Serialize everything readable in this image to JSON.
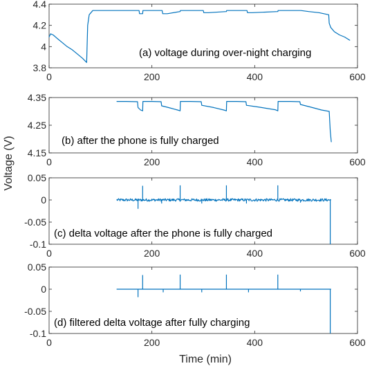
{
  "line_color": "#0072BD",
  "chart_data": [
    {
      "type": "line",
      "annotation": "(a) voltage during over-night charging",
      "xlim": [
        0,
        600
      ],
      "ylim": [
        3.8,
        4.4
      ],
      "xticks": [
        0,
        200,
        400,
        600
      ],
      "yticks": [
        3.8,
        4,
        4.2,
        4.4
      ],
      "xtick_labels": [
        "0",
        "200",
        "400",
        "600"
      ],
      "ytick_labels": [
        "3.8",
        "4",
        "4.2",
        "4.4"
      ],
      "series": [
        {
          "x": [
            0,
            3,
            8,
            15,
            25,
            35,
            45,
            55,
            65,
            73,
            75,
            78,
            85,
            100,
            120,
            150,
            175,
            176,
            182,
            182.5,
            200,
            220,
            221,
            230,
            255,
            255.5,
            280,
            300,
            301,
            310,
            345,
            345.5,
            370,
            385,
            386,
            395,
            445,
            445.5,
            470,
            490,
            505,
            525,
            544,
            545,
            548,
            555,
            565,
            575,
            585
          ],
          "y": [
            4.09,
            4.12,
            4.11,
            4.08,
            4.04,
            4.0,
            3.97,
            3.93,
            3.89,
            3.85,
            4.2,
            4.3,
            4.34,
            4.34,
            4.34,
            4.34,
            4.34,
            4.31,
            4.31,
            4.34,
            4.34,
            4.34,
            4.31,
            4.31,
            4.33,
            4.34,
            4.34,
            4.34,
            4.32,
            4.32,
            4.33,
            4.34,
            4.34,
            4.34,
            4.32,
            4.32,
            4.33,
            4.34,
            4.34,
            4.34,
            4.33,
            4.32,
            4.3,
            4.22,
            4.18,
            4.14,
            4.11,
            4.09,
            4.06
          ]
        }
      ]
    },
    {
      "type": "line",
      "annotation": "(b) after the phone is fully charged",
      "xlim": [
        0,
        600
      ],
      "ylim": [
        4.15,
        4.35
      ],
      "xticks": [
        0,
        200,
        400,
        600
      ],
      "yticks": [
        4.15,
        4.25,
        4.35
      ],
      "xtick_labels": [
        "0",
        "200",
        "400",
        "600"
      ],
      "ytick_labels": [
        "4.15",
        "4.25",
        "4.35"
      ],
      "series": [
        {
          "x": [
            132,
            150,
            172,
            173,
            178,
            182,
            182.5,
            200,
            218,
            219,
            230,
            250,
            255,
            255.5,
            275,
            296,
            297,
            320,
            340,
            345,
            345.5,
            365,
            383,
            384,
            410,
            440,
            445,
            445.5,
            470,
            488,
            489,
            510,
            530,
            545,
            547,
            549
          ],
          "y": [
            4.336,
            4.336,
            4.335,
            4.314,
            4.305,
            4.302,
            4.336,
            4.336,
            4.335,
            4.32,
            4.315,
            4.305,
            4.302,
            4.336,
            4.336,
            4.335,
            4.322,
            4.314,
            4.305,
            4.302,
            4.336,
            4.336,
            4.335,
            4.322,
            4.315,
            4.306,
            4.302,
            4.336,
            4.336,
            4.335,
            4.325,
            4.315,
            4.305,
            4.3,
            4.23,
            4.19
          ]
        }
      ]
    },
    {
      "type": "line",
      "annotation": "(c) delta voltage after the phone is fully charged",
      "xlim": [
        0,
        600
      ],
      "ylim": [
        -0.1,
        0.05
      ],
      "xticks": [
        0,
        200,
        400,
        600
      ],
      "yticks": [
        -0.1,
        -0.05,
        0,
        0.05
      ],
      "xtick_labels": [
        "0",
        "200",
        "400",
        "600"
      ],
      "ytick_labels": [
        "-0.1",
        "-0.05",
        "0",
        "0.05"
      ],
      "baseline_x": [
        132,
        548
      ],
      "noise_amplitude": 0.003,
      "spikes": [
        {
          "x": 173,
          "y": -0.02
        },
        {
          "x": 182,
          "y": 0.032
        },
        {
          "x": 219,
          "y": -0.008
        },
        {
          "x": 255,
          "y": 0.033
        },
        {
          "x": 297,
          "y": -0.008
        },
        {
          "x": 345,
          "y": 0.033
        },
        {
          "x": 384,
          "y": -0.008
        },
        {
          "x": 445,
          "y": 0.033
        },
        {
          "x": 489,
          "y": -0.006
        },
        {
          "x": 547,
          "y": -0.1
        }
      ]
    },
    {
      "type": "line",
      "annotation": "(d) filtered delta voltage after fully charging",
      "xlim": [
        0,
        600
      ],
      "ylim": [
        -0.1,
        0.05
      ],
      "xticks": [
        0,
        200,
        400,
        600
      ],
      "yticks": [
        -0.1,
        -0.05,
        0,
        0.05
      ],
      "xtick_labels": [
        "0",
        "200",
        "400",
        "600"
      ],
      "ytick_labels": [
        "-0.1",
        "-0.05",
        "0",
        "0.05"
      ],
      "baseline_x": [
        132,
        548
      ],
      "spikes": [
        {
          "x": 173,
          "y": -0.018
        },
        {
          "x": 182,
          "y": 0.032
        },
        {
          "x": 222,
          "y": -0.007
        },
        {
          "x": 255,
          "y": 0.033
        },
        {
          "x": 297,
          "y": -0.007
        },
        {
          "x": 345,
          "y": 0.033
        },
        {
          "x": 388,
          "y": -0.007
        },
        {
          "x": 445,
          "y": 0.033
        },
        {
          "x": 489,
          "y": -0.005
        },
        {
          "x": 547,
          "y": -0.1
        }
      ]
    }
  ],
  "axis_labels": {
    "ylabel": "Voltage (V)",
    "xlabel": "Time (min)"
  }
}
